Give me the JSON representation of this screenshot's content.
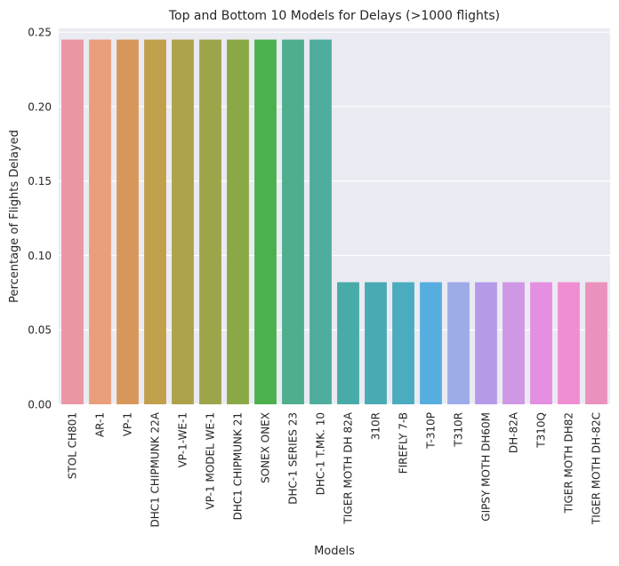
{
  "chart_data": {
    "type": "bar",
    "title": "Top and Bottom 10 Models for Delays (>1000 flights)",
    "xlabel": "Models",
    "ylabel": "Percentage of Flights Delayed",
    "ylim": [
      0,
      0.2525
    ],
    "yticks": [
      "0.00",
      "0.05",
      "0.10",
      "0.15",
      "0.20",
      "0.25"
    ],
    "grid": true,
    "categories": [
      "STOL CH801",
      "AR-1",
      "VP-1",
      "DHC1 CHIPMUNK 22A",
      "VP-1-WE-1",
      "VP-1 MODEL WE-1",
      "DHC1 CHIPMUNK 21",
      "SONEX ONEX",
      "DHC-1 SERIES 23",
      "DHC-1 T.MK. 10",
      "TIGER MOTH DH 82A",
      "310R",
      "FIREFLY 7-B",
      "T-310P",
      "T310R",
      "GIPSY MOTH DH60M",
      "DH-82A",
      "T310Q",
      "TIGER MOTH DH82",
      "TIGER MOTH DH-82C"
    ],
    "values": [
      0.245,
      0.245,
      0.245,
      0.245,
      0.245,
      0.245,
      0.245,
      0.245,
      0.245,
      0.245,
      0.082,
      0.082,
      0.082,
      0.082,
      0.082,
      0.082,
      0.082,
      0.082,
      0.082,
      0.082
    ],
    "colors": [
      "#ea96a3",
      "#e99e7c",
      "#d8975a",
      "#c1a04b",
      "#ada24a",
      "#9ca54a",
      "#8ba846",
      "#4cb04f",
      "#4eae8e",
      "#4ead9d",
      "#48aba7",
      "#49aab3",
      "#4bacc0",
      "#56aee0",
      "#9dabe7",
      "#b49ae9",
      "#cf97e4",
      "#e58fe1",
      "#f08ed3",
      "#ea92bd"
    ]
  }
}
